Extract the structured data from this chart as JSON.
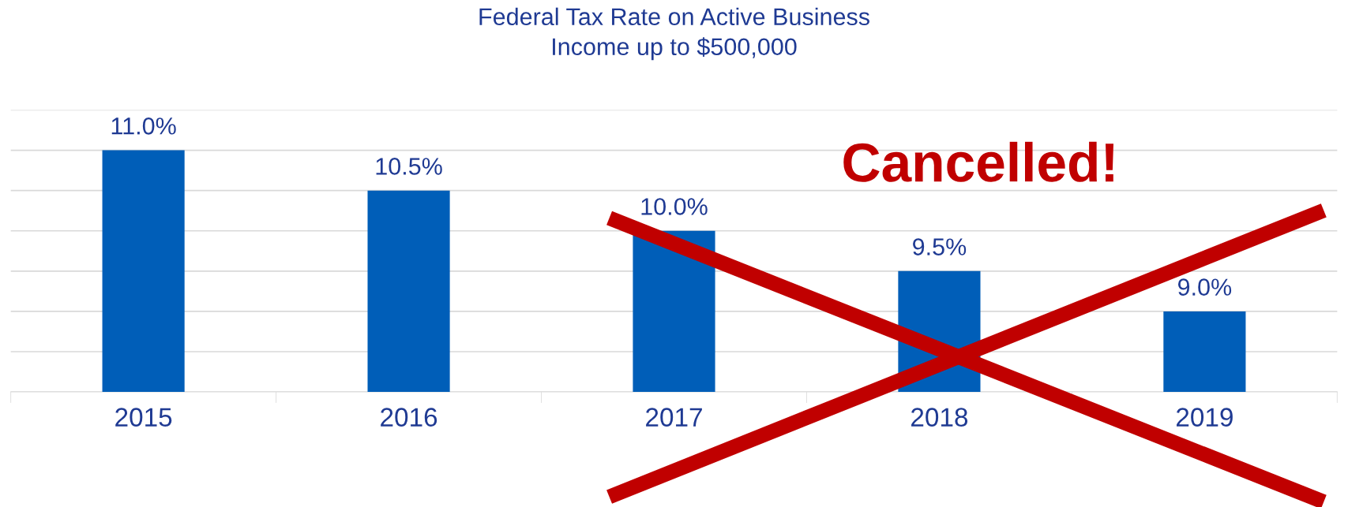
{
  "chart_data": {
    "type": "bar",
    "title": "Federal Tax Rate on Active Business\nIncome up to $500,000",
    "categories": [
      "2015",
      "2016",
      "2017",
      "2018",
      "2019"
    ],
    "values": [
      11.0,
      10.5,
      10.0,
      9.5,
      9.0
    ],
    "value_labels": [
      "11.0%",
      "10.5%",
      "10.0%",
      "9.5%",
      "9.0%"
    ],
    "color": "#005eb8",
    "ylim": [
      8,
      11.5
    ],
    "yticks": [
      {
        "value": 8,
        "label": null
      },
      {
        "value": 8.5,
        "label": null
      },
      {
        "value": 9,
        "label": null
      },
      {
        "value": 9.5,
        "label": null
      },
      {
        "value": 10,
        "label": null
      },
      {
        "value": 10.5,
        "label": null
      },
      {
        "value": 11,
        "label": null
      },
      {
        "value": 11.5,
        "label": null
      }
    ],
    "grid": "y",
    "tick_labels": "x",
    "annotations": [
      "Cancelled!"
    ]
  }
}
